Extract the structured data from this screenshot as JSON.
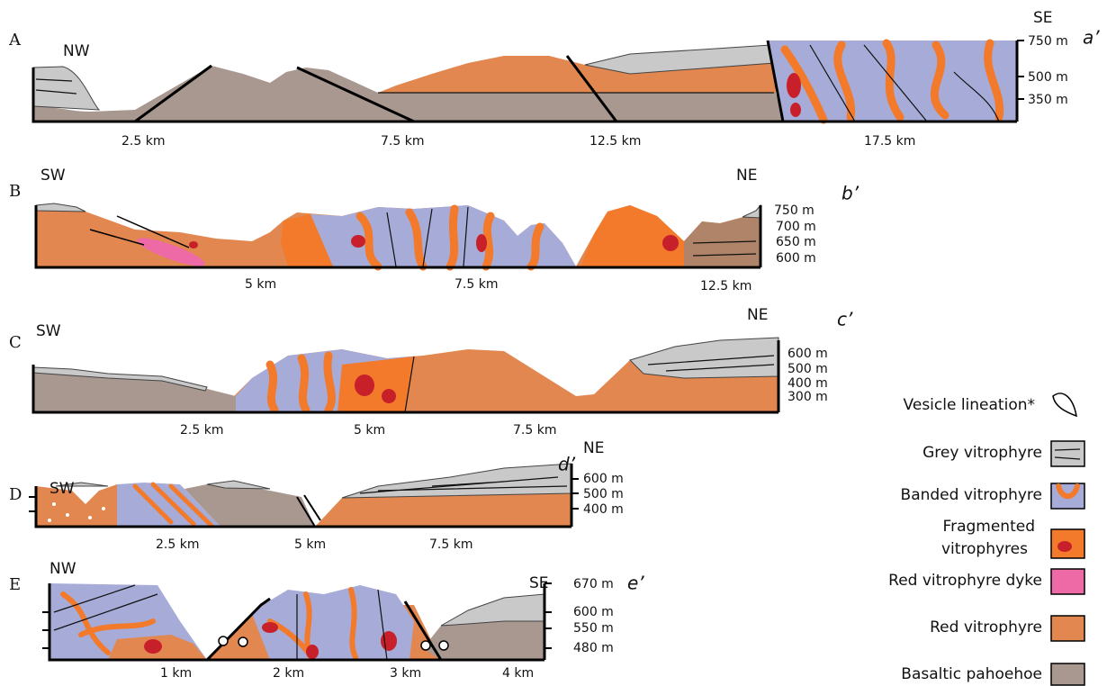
{
  "panels": [
    {
      "letter": "A",
      "left": "NW",
      "right": "SE",
      "section_end": "a’",
      "elevations": [
        "750 m",
        "500 m",
        "350 m"
      ],
      "distances": [
        "2.5 km",
        "7.5 km",
        "12.5 km",
        "17.5 km"
      ]
    },
    {
      "letter": "B",
      "left": "SW",
      "right": "NE",
      "section_end": "b’",
      "elevations": [
        "750 m",
        "700 m",
        "650 m",
        "600 m"
      ],
      "distances": [
        "5 km",
        "7.5 km",
        "12.5 km"
      ]
    },
    {
      "letter": "C",
      "left": "SW",
      "right": "NE",
      "section_end": "c’",
      "elevations": [
        "600 m",
        "500 m",
        "400 m",
        "300 m"
      ],
      "distances": [
        "2.5 km",
        "5 km",
        "7.5 km"
      ]
    },
    {
      "letter": "D",
      "left": "SW",
      "right": "NE",
      "section_end": "d’",
      "elevations": [
        "600 m",
        "500 m",
        "400 m"
      ],
      "distances": [
        "2.5 km",
        "5 km",
        "7.5 km"
      ]
    },
    {
      "letter": "E",
      "left": "NW",
      "right": "SE",
      "section_end": "e’",
      "elevations": [
        "670 m",
        "600 m",
        "550 m",
        "480 m"
      ],
      "distances": [
        "1 km",
        "2 km",
        "3 km",
        "4 km"
      ]
    }
  ],
  "legend": {
    "vesicle": "Vesicle lineation*",
    "items": [
      [
        "Grey vitrophyre"
      ],
      [
        "Banded vitrophyre"
      ],
      [
        "Fragmented",
        "vitrophyres"
      ],
      [
        "Red vitrophyre dyke"
      ],
      [
        "Red vitrophyre"
      ],
      [
        "Basaltic pahoehoe"
      ]
    ]
  }
}
